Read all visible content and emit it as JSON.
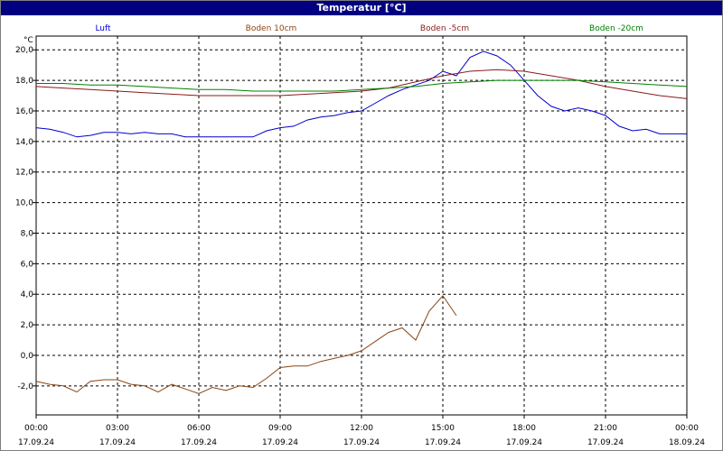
{
  "window": {
    "title": "Temperatur [°C]"
  },
  "colors": {
    "Luft": "#0000cc",
    "Boden 10cm": "#8b4513",
    "Boden -5cm": "#8b1a1a",
    "Boden -20cm": "#008000",
    "grid": "#000000",
    "titlebar": "#000080"
  },
  "chart_data": {
    "type": "line",
    "title": "Temperatur [°C]",
    "ylabel": "°C",
    "xlabel": "",
    "ylim": [
      -3.9,
      20.9
    ],
    "xlim": [
      0,
      24
    ],
    "grid": true,
    "grid_style": "dashed",
    "legend_position": "top",
    "yticks": [
      -2,
      0,
      2,
      4,
      6,
      8,
      10,
      12,
      14,
      16,
      18,
      20
    ],
    "ytick_labels": [
      "-2,0",
      "0,0",
      "2,0",
      "4,0",
      "6,0",
      "8,0",
      "10,0",
      "12,0",
      "14,0",
      "16,0",
      "18,0",
      "20,0"
    ],
    "xticks": [
      0,
      3,
      6,
      9,
      12,
      15,
      18,
      21,
      24
    ],
    "xtick_labels": [
      [
        "00:00",
        "17.09.24"
      ],
      [
        "03:00",
        "17.09.24"
      ],
      [
        "06:00",
        "17.09.24"
      ],
      [
        "09:00",
        "17.09.24"
      ],
      [
        "12:00",
        "17.09.24"
      ],
      [
        "15:00",
        "17.09.24"
      ],
      [
        "18:00",
        "17.09.24"
      ],
      [
        "21:00",
        "17.09.24"
      ],
      [
        "00:00",
        "18.09.24"
      ]
    ],
    "series": [
      {
        "name": "Luft",
        "x": [
          0,
          0.5,
          1,
          1.5,
          2,
          2.5,
          3,
          3.5,
          4,
          4.5,
          5,
          5.5,
          6,
          6.5,
          7,
          7.5,
          8,
          8.5,
          9,
          9.5,
          10,
          10.5,
          11,
          11.5,
          12,
          12.5,
          13,
          13.5,
          14,
          14.5,
          15,
          15.5,
          16,
          16.5,
          17,
          17.5,
          18,
          18.5,
          19,
          19.5,
          20,
          20.5,
          21,
          21.5,
          22,
          22.5,
          23,
          23.5,
          24
        ],
        "values": [
          14.9,
          14.8,
          14.6,
          14.3,
          14.4,
          14.6,
          14.6,
          14.5,
          14.6,
          14.5,
          14.5,
          14.3,
          14.3,
          14.3,
          14.3,
          14.3,
          14.3,
          14.7,
          14.9,
          15.0,
          15.4,
          15.6,
          15.7,
          15.9,
          16.0,
          16.5,
          17.0,
          17.4,
          17.7,
          18.0,
          18.6,
          18.3,
          19.5,
          19.9,
          19.6,
          19.0,
          18.0,
          17.0,
          16.3,
          16.0,
          16.2,
          16.0,
          15.7,
          15.0,
          14.7,
          14.8,
          14.5,
          14.5,
          14.5
        ]
      },
      {
        "name": "Boden 10cm",
        "x": [
          0,
          0.5,
          1,
          1.5,
          2,
          2.5,
          3,
          3.5,
          4,
          4.5,
          5,
          5.5,
          6,
          6.5,
          7,
          7.5,
          8,
          8.5,
          9,
          9.5,
          10,
          10.5,
          11,
          11.5,
          12,
          12.5,
          13,
          13.5,
          14,
          14.5,
          15,
          15.5
        ],
        "values": [
          -1.7,
          -1.9,
          -2.0,
          -2.4,
          -1.7,
          -1.6,
          -1.6,
          -1.9,
          -2.0,
          -2.4,
          -1.9,
          -2.2,
          -2.5,
          -2.1,
          -2.3,
          -2.0,
          -2.1,
          -1.5,
          -0.8,
          -0.7,
          -0.7,
          -0.4,
          -0.2,
          0.0,
          0.3,
          0.9,
          1.5,
          1.8,
          1.0,
          2.9,
          3.9,
          2.6
        ]
      },
      {
        "name": "Boden -5cm",
        "x": [
          0,
          1,
          2,
          3,
          4,
          5,
          6,
          7,
          8,
          9,
          10,
          11,
          12,
          13,
          14,
          15,
          16,
          17,
          18,
          19,
          20,
          21,
          22,
          23,
          24
        ],
        "values": [
          17.6,
          17.5,
          17.4,
          17.3,
          17.2,
          17.1,
          17.0,
          17.0,
          17.0,
          17.0,
          17.1,
          17.2,
          17.3,
          17.5,
          17.9,
          18.3,
          18.6,
          18.7,
          18.6,
          18.3,
          18.0,
          17.6,
          17.3,
          17.0,
          16.8
        ]
      },
      {
        "name": "Boden -20cm",
        "x": [
          0,
          1,
          2,
          3,
          4,
          5,
          6,
          7,
          8,
          9,
          10,
          11,
          12,
          13,
          14,
          15,
          16,
          17,
          18,
          19,
          20,
          21,
          22,
          23,
          24
        ],
        "values": [
          17.8,
          17.8,
          17.7,
          17.7,
          17.6,
          17.5,
          17.4,
          17.4,
          17.3,
          17.3,
          17.3,
          17.3,
          17.4,
          17.5,
          17.6,
          17.8,
          17.9,
          18.0,
          18.0,
          18.0,
          18.0,
          17.9,
          17.8,
          17.7,
          17.6
        ]
      }
    ]
  }
}
